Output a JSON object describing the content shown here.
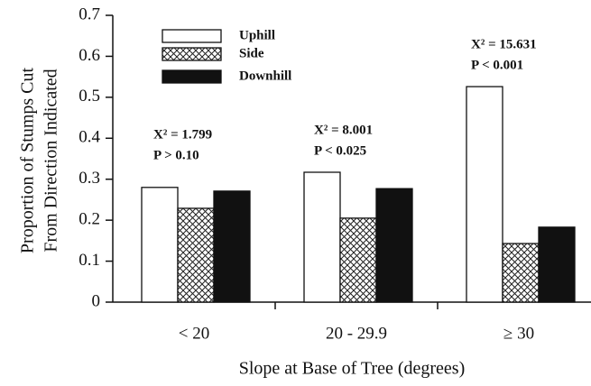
{
  "chart_data": {
    "type": "bar",
    "x_label": "Slope at Base of Tree (degrees)",
    "y_label": [
      "Proportion of Stumps Cut",
      "From Direction Indicated"
    ],
    "categories": [
      "< 20",
      "20 - 29.9",
      "≥ 30"
    ],
    "series": [
      {
        "name": "Uphill",
        "color": "#ffffff",
        "values": [
          0.28,
          0.317,
          0.526
        ]
      },
      {
        "name": "Side",
        "color": "#ffffff",
        "pattern": "crosshatch",
        "values": [
          0.229,
          0.205,
          0.143
        ]
      },
      {
        "name": "Downhill",
        "color": "#111111",
        "values": [
          0.271,
          0.277,
          0.183
        ]
      }
    ],
    "annotations": [
      {
        "lines": [
          "X² = 1.799",
          "P > 0.10"
        ]
      },
      {
        "lines": [
          "X² = 8.001",
          "P < 0.025"
        ]
      },
      {
        "lines": [
          "X² = 15.631",
          "P < 0.001"
        ]
      }
    ],
    "ylim": [
      0,
      0.7
    ],
    "yticks": [
      0,
      0.1,
      0.2,
      0.3,
      0.4,
      0.5,
      0.6,
      0.7
    ],
    "grid": false
  }
}
